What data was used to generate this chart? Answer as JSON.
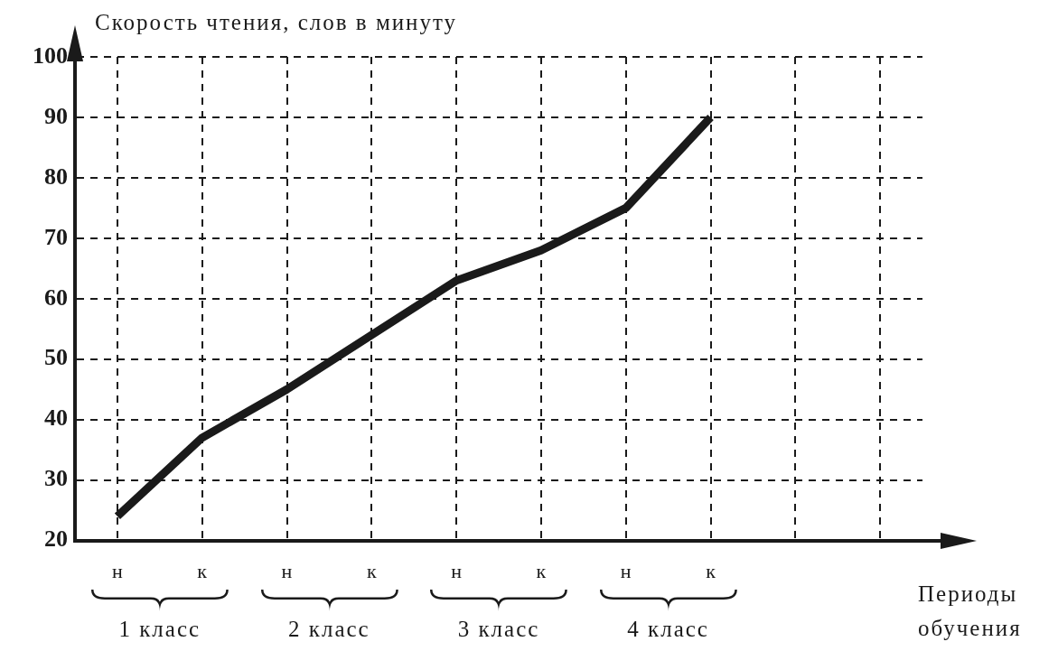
{
  "chart_data": {
    "type": "line",
    "xlabel": "Периоды обучения",
    "ylabel": "Скорость чтения, слов в минуту",
    "categories": [
      "н",
      "к",
      "н",
      "к",
      "н",
      "к",
      "н",
      "к",
      null,
      null
    ],
    "values": [
      24,
      37,
      45,
      54,
      63,
      68,
      75,
      90,
      null,
      null
    ],
    "color": "#1a1a1a",
    "marker": "none",
    "grid": true,
    "ylim": [
      20,
      100
    ],
    "yticks": [
      20,
      30,
      40,
      50,
      60,
      70,
      80,
      90,
      100
    ],
    "annotations": [
      "1 класс",
      "2 класс",
      "3 класс",
      "4 класс"
    ]
  }
}
